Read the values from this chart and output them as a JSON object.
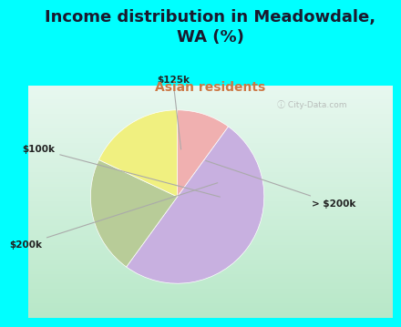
{
  "title": "Income distribution in Meadowdale,\nWA (%)",
  "subtitle": "Asian residents",
  "title_color": "#1a1a2e",
  "subtitle_color": "#cc7744",
  "background_color": "#00ffff",
  "chart_bg_top": "#e8f5f0",
  "chart_bg_bottom": "#c8e8d0",
  "slices": [
    {
      "label": "$125k",
      "value": 10,
      "color": "#f0b0b0"
    },
    {
      "label": "> $200k",
      "value": 50,
      "color": "#c8b0e0"
    },
    {
      "label": "$200k",
      "value": 22,
      "color": "#b8cc98"
    },
    {
      "label": "$100k",
      "value": 18,
      "color": "#f0f080"
    }
  ],
  "startangle": 90,
  "label_fontsize": 7.5,
  "title_fontsize": 13,
  "subtitle_fontsize": 10,
  "watermark": "ⓘ City-Data.com"
}
